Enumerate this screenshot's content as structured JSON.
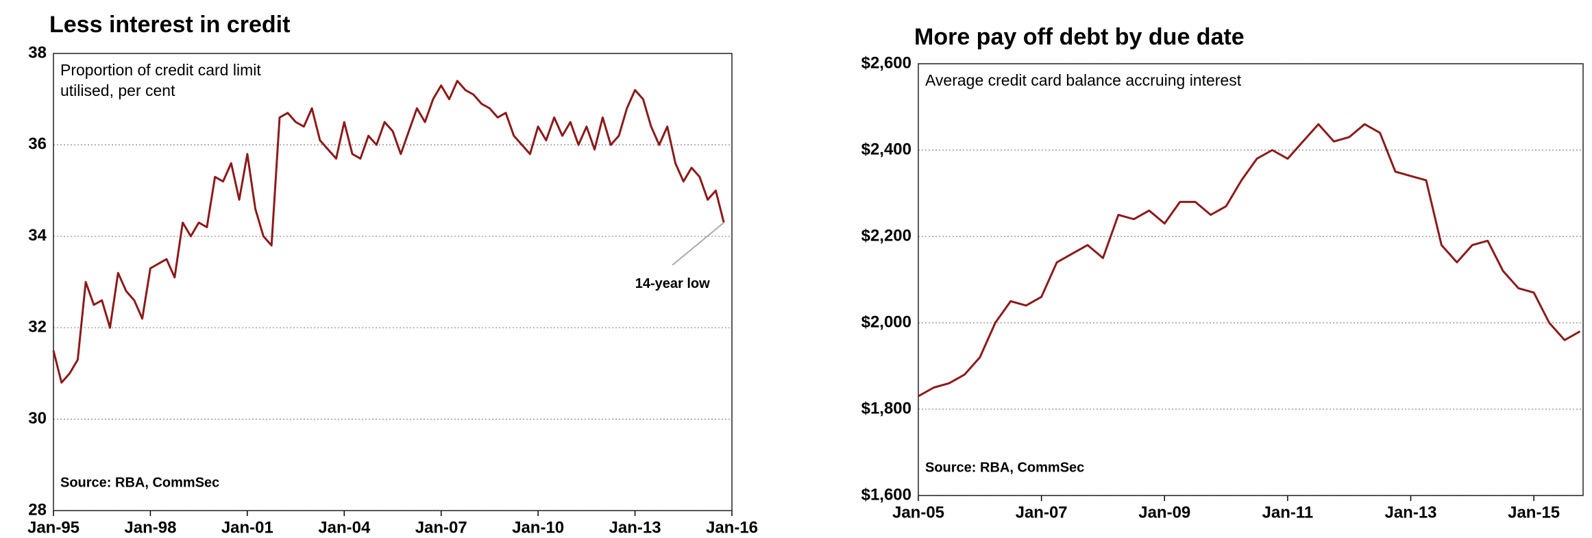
{
  "chart_data": [
    {
      "type": "line",
      "title": "Less interest in credit",
      "subtitle_lines": [
        "Proportion of credit card limit",
        "utilised, per cent"
      ],
      "source": "Source: RBA, CommSec",
      "annotation": "14-year low",
      "x": [
        1995,
        1995.25,
        1995.5,
        1995.75,
        1996,
        1996.25,
        1996.5,
        1996.75,
        1997,
        1997.25,
        1997.5,
        1997.75,
        1998,
        1998.25,
        1998.5,
        1998.75,
        1999,
        1999.25,
        1999.5,
        1999.75,
        2000,
        2000.25,
        2000.5,
        2000.75,
        2001,
        2001.25,
        2001.5,
        2001.75,
        2002,
        2002.25,
        2002.5,
        2002.75,
        2003,
        2003.25,
        2003.5,
        2003.75,
        2004,
        2004.25,
        2004.5,
        2004.75,
        2005,
        2005.25,
        2005.5,
        2005.75,
        2006,
        2006.25,
        2006.5,
        2006.75,
        2007,
        2007.25,
        2007.5,
        2007.75,
        2008,
        2008.25,
        2008.5,
        2008.75,
        2009,
        2009.25,
        2009.5,
        2009.75,
        2010,
        2010.25,
        2010.5,
        2010.75,
        2011,
        2011.25,
        2011.5,
        2011.75,
        2012,
        2012.25,
        2012.5,
        2012.75,
        2013,
        2013.25,
        2013.5,
        2013.75,
        2014,
        2014.25,
        2014.5,
        2014.75,
        2015,
        2015.25,
        2015.5,
        2015.75
      ],
      "series": [
        {
          "name": "Proportion of credit card limit utilised",
          "color": "#8b1a1a",
          "values": [
            31.5,
            30.8,
            31.0,
            31.3,
            33.0,
            32.5,
            32.6,
            32.0,
            33.2,
            32.8,
            32.6,
            32.2,
            33.3,
            33.4,
            33.5,
            33.1,
            34.3,
            34.0,
            34.3,
            34.2,
            35.3,
            35.2,
            35.6,
            34.8,
            35.8,
            34.6,
            34.0,
            33.8,
            36.6,
            36.7,
            36.5,
            36.4,
            36.8,
            36.1,
            35.9,
            35.7,
            36.5,
            35.8,
            35.7,
            36.2,
            36.0,
            36.5,
            36.3,
            35.8,
            36.3,
            36.8,
            36.5,
            37.0,
            37.3,
            37.0,
            37.4,
            37.2,
            37.1,
            36.9,
            36.8,
            36.6,
            36.7,
            36.2,
            36.0,
            35.8,
            36.4,
            36.1,
            36.6,
            36.2,
            36.5,
            36.0,
            36.4,
            35.9,
            36.6,
            36.0,
            36.2,
            36.8,
            37.2,
            37.0,
            36.4,
            36.0,
            36.4,
            35.6,
            35.2,
            35.5,
            35.3,
            34.8,
            35.0,
            34.3
          ]
        }
      ],
      "xlim": [
        1995,
        2016
      ],
      "xticks": [
        {
          "value": 1995,
          "label": "Jan-95"
        },
        {
          "value": 1998,
          "label": "Jan-98"
        },
        {
          "value": 2001,
          "label": "Jan-01"
        },
        {
          "value": 2004,
          "label": "Jan-04"
        },
        {
          "value": 2007,
          "label": "Jan-07"
        },
        {
          "value": 2010,
          "label": "Jan-10"
        },
        {
          "value": 2013,
          "label": "Jan-13"
        },
        {
          "value": 2016,
          "label": "Jan-16"
        }
      ],
      "ylim": [
        28,
        38
      ],
      "yticks": [
        28,
        30,
        32,
        34,
        36,
        38
      ],
      "grid": true
    },
    {
      "type": "line",
      "title": "More pay off debt by due date",
      "subtitle_lines": [
        "Average credit card balance accruing interest"
      ],
      "source": "Source: RBA, CommSec",
      "x": [
        2005,
        2005.25,
        2005.5,
        2005.75,
        2006,
        2006.25,
        2006.5,
        2006.75,
        2007,
        2007.25,
        2007.5,
        2007.75,
        2008,
        2008.25,
        2008.5,
        2008.75,
        2009,
        2009.25,
        2009.5,
        2009.75,
        2010,
        2010.25,
        2010.5,
        2010.75,
        2011,
        2011.25,
        2011.5,
        2011.75,
        2012,
        2012.25,
        2012.5,
        2012.75,
        2013,
        2013.25,
        2013.5,
        2013.75,
        2014,
        2014.25,
        2014.5,
        2014.75,
        2015,
        2015.25,
        2015.5,
        2015.75
      ],
      "series": [
        {
          "name": "Average credit card balance accruing interest",
          "color": "#8b1a1a",
          "values": [
            1830,
            1850,
            1860,
            1880,
            1920,
            2000,
            2050,
            2040,
            2060,
            2140,
            2160,
            2180,
            2150,
            2250,
            2240,
            2260,
            2230,
            2280,
            2280,
            2250,
            2270,
            2330,
            2380,
            2400,
            2380,
            2420,
            2460,
            2420,
            2430,
            2460,
            2440,
            2350,
            2340,
            2330,
            2180,
            2140,
            2180,
            2190,
            2120,
            2080,
            2070,
            2000,
            1960,
            1980
          ]
        }
      ],
      "xlim": [
        2005,
        2015.8
      ],
      "xticks": [
        {
          "value": 2005,
          "label": "Jan-05"
        },
        {
          "value": 2007,
          "label": "Jan-07"
        },
        {
          "value": 2009,
          "label": "Jan-09"
        },
        {
          "value": 2011,
          "label": "Jan-11"
        },
        {
          "value": 2013,
          "label": "Jan-13"
        },
        {
          "value": 2015,
          "label": "Jan-15"
        }
      ],
      "ylim": [
        1600,
        2600
      ],
      "yticks": [
        {
          "value": 1600,
          "label": "$1,600"
        },
        {
          "value": 1800,
          "label": "$1,800"
        },
        {
          "value": 2000,
          "label": "$2,000"
        },
        {
          "value": 2200,
          "label": "$2,200"
        },
        {
          "value": 2400,
          "label": "$2,400"
        },
        {
          "value": 2600,
          "label": "$2,600"
        }
      ],
      "grid": true
    }
  ]
}
